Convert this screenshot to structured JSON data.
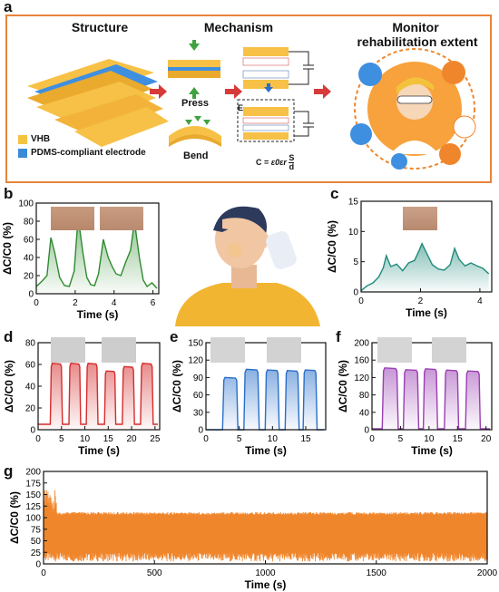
{
  "panel_labels": [
    "a",
    "b",
    "c",
    "d",
    "e",
    "f",
    "g"
  ],
  "panel_a": {
    "structure_title": "Structure",
    "mechanism_title": "Mechanism",
    "monitor_title_line1": "Monitor",
    "monitor_title_line2": "rehabilitation extent",
    "press_label": "Press",
    "bend_label": "Bend",
    "legend": [
      {
        "label": "VHB",
        "color": "#f5c342"
      },
      {
        "label": "PDMS-compliant electrode",
        "color": "#3a8ad8"
      }
    ],
    "field_label": "E",
    "formula_prefix": "C =",
    "formula_coef": "ε0εr",
    "formula_num": "S",
    "formula_den": "d"
  },
  "chart_data": [
    {
      "id": "b",
      "type": "line",
      "color": "#2e8b2e",
      "xlabel": "Time (s)",
      "ylabel": "ΔC/C0 (%)",
      "xlim": [
        0,
        6.3
      ],
      "ylim": [
        0,
        100
      ],
      "xticks": [
        0,
        2,
        4,
        6
      ],
      "yticks": [
        0,
        20,
        40,
        60,
        80,
        100
      ],
      "x": [
        0,
        0.3,
        0.55,
        0.75,
        0.95,
        1.2,
        1.45,
        1.7,
        1.95,
        2.15,
        2.4,
        2.6,
        2.8,
        3.0,
        3.2,
        3.45,
        3.7,
        3.9,
        4.1,
        4.35,
        4.6,
        4.85,
        5.05,
        5.3,
        5.5,
        5.7,
        5.95,
        6.2
      ],
      "y": [
        8,
        14,
        20,
        62,
        45,
        18,
        9,
        8,
        25,
        85,
        45,
        18,
        10,
        9,
        22,
        60,
        40,
        30,
        22,
        20,
        35,
        48,
        80,
        40,
        15,
        8,
        12,
        6
      ]
    },
    {
      "id": "c",
      "type": "line",
      "color": "#1e8a7a",
      "xlabel": "Time (s)",
      "ylabel": "ΔC/C0 (%)",
      "xlim": [
        0,
        4.4
      ],
      "ylim": [
        0,
        15
      ],
      "xticks": [
        0,
        2,
        4
      ],
      "yticks": [
        0,
        5,
        10,
        15
      ],
      "x": [
        0,
        0.2,
        0.4,
        0.6,
        0.75,
        0.85,
        1.0,
        1.2,
        1.4,
        1.6,
        1.8,
        1.95,
        2.05,
        2.2,
        2.4,
        2.6,
        2.8,
        3.0,
        3.15,
        3.3,
        3.5,
        3.7,
        3.9,
        4.1,
        4.3
      ],
      "y": [
        0.2,
        1.0,
        1.5,
        2.5,
        4.0,
        6.0,
        4.2,
        4.6,
        3.5,
        4.8,
        5.2,
        6.8,
        8.0,
        6.5,
        4.5,
        3.8,
        3.6,
        4.5,
        7.2,
        5.4,
        4.3,
        4.8,
        4.3,
        3.9,
        3.0
      ]
    },
    {
      "id": "d",
      "type": "line",
      "color": "#d62c2c",
      "xlabel": "Time (s)",
      "ylabel": "ΔC/C0 (%)",
      "xlim": [
        0,
        26
      ],
      "ylim": [
        0,
        80
      ],
      "xticks": [
        0,
        5,
        10,
        15,
        20,
        25
      ],
      "yticks": [
        0,
        20,
        40,
        60,
        80
      ],
      "pulses": [
        [
          2.6,
          5.2,
          61
        ],
        [
          6.6,
          9.1,
          61
        ],
        [
          10.3,
          12.8,
          61
        ],
        [
          14.2,
          16.6,
          54
        ],
        [
          18.0,
          20.6,
          58
        ],
        [
          21.9,
          24.6,
          61
        ]
      ],
      "baseline": 5
    },
    {
      "id": "e",
      "type": "line",
      "color": "#2a6fc9",
      "xlabel": "Time (s)",
      "ylabel": "ΔC/C0 (%)",
      "xlim": [
        0,
        18
      ],
      "ylim": [
        0,
        150
      ],
      "xticks": [
        0,
        5,
        10,
        15
      ],
      "yticks": [
        0,
        30,
        60,
        90,
        120,
        150
      ],
      "pulses": [
        [
          2.5,
          4.8,
          90
        ],
        [
          5.7,
          8.0,
          104
        ],
        [
          8.9,
          11.0,
          103
        ],
        [
          11.9,
          14.0,
          102
        ],
        [
          14.6,
          16.7,
          103
        ]
      ],
      "baseline": 0
    },
    {
      "id": "f",
      "type": "line",
      "color": "#9a3fb3",
      "xlabel": "Time (s)",
      "ylabel": "ΔC/C0 (%)",
      "xlim": [
        0,
        21
      ],
      "ylim": [
        0,
        200
      ],
      "xticks": [
        0,
        5,
        10,
        15,
        20
      ],
      "yticks": [
        0,
        40,
        80,
        120,
        160,
        200
      ],
      "pulses": [
        [
          1.8,
          4.6,
          142
        ],
        [
          5.5,
          8.2,
          138
        ],
        [
          9.0,
          11.5,
          140
        ],
        [
          12.7,
          15.2,
          137
        ],
        [
          16.4,
          19.0,
          135
        ]
      ],
      "baseline": 2
    },
    {
      "id": "g",
      "type": "area",
      "color": "#f0862c",
      "xlabel": "Time (s)",
      "ylabel": "ΔC/C0 (%)",
      "xlim": [
        0,
        2000
      ],
      "ylim": [
        0,
        200
      ],
      "xticks": [
        0,
        500,
        1000,
        1500,
        2000
      ],
      "yticks": [
        0,
        25,
        50,
        75,
        100,
        125,
        150,
        175,
        200
      ],
      "band": {
        "upper": 112,
        "lower": 5,
        "initial_peak": 160
      }
    }
  ]
}
